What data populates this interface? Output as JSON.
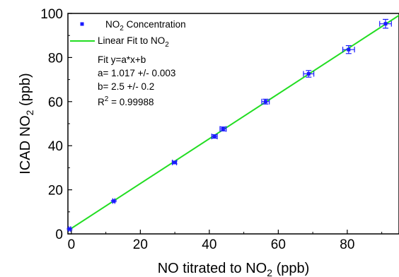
{
  "chart_data": {
    "type": "scatter",
    "xlabel": {
      "main": "NO titrated to NO",
      "sub": "2",
      "unit": " (ppb)"
    },
    "ylabel": {
      "main": "ICAD NO",
      "sub": "2",
      "unit": " (ppb)"
    },
    "xlim": [
      -1,
      95
    ],
    "ylim": [
      0,
      100
    ],
    "x_ticks": [
      0,
      20,
      40,
      60,
      80
    ],
    "y_ticks": [
      0,
      20,
      40,
      60,
      80,
      100
    ],
    "x_tick_labels": [
      "0",
      "20",
      "40",
      "60",
      "80"
    ],
    "y_tick_labels": [
      "0",
      "20",
      "40",
      "60",
      "80",
      "100"
    ],
    "grid": false,
    "legend_position": "top-left",
    "series": [
      {
        "name": {
          "main": "NO",
          "sub": "2",
          "rest": " Concentration"
        },
        "kind": "points",
        "color": "#1a1aff",
        "points": [
          {
            "x": -0.5,
            "y": 2.2,
            "xerr": 0.3,
            "yerr": 0.3
          },
          {
            "x": 12.3,
            "y": 14.9,
            "xerr": 0.3,
            "yerr": 0.3
          },
          {
            "x": 29.9,
            "y": 32.4,
            "xerr": 0.6,
            "yerr": 0.6
          },
          {
            "x": 41.5,
            "y": 44.2,
            "xerr": 0.8,
            "yerr": 0.8
          },
          {
            "x": 44.0,
            "y": 47.6,
            "xerr": 0.9,
            "yerr": 0.9
          },
          {
            "x": 56.3,
            "y": 60.0,
            "xerr": 1.1,
            "yerr": 1.1
          },
          {
            "x": 68.8,
            "y": 72.6,
            "xerr": 1.5,
            "yerr": 1.5
          },
          {
            "x": 80.4,
            "y": 83.6,
            "xerr": 1.7,
            "yerr": 1.8
          },
          {
            "x": 91.1,
            "y": 95.3,
            "xerr": 1.7,
            "yerr": 2.0
          }
        ]
      },
      {
        "name": {
          "main": "Linear  Fit to NO",
          "sub": "2",
          "rest": ""
        },
        "kind": "line",
        "color": "#22dd22",
        "slope": 1.017,
        "intercept": 2.5
      }
    ],
    "annotations": {
      "fit_equation": "Fit y=a*x+b",
      "a_line": "a= 1.017 +/-  0.003",
      "b_line": "b= 2.5 +/- 0.2",
      "r2_prefix": "R",
      "r2_sup": "2",
      "r2_value": " = 0.99988"
    }
  }
}
